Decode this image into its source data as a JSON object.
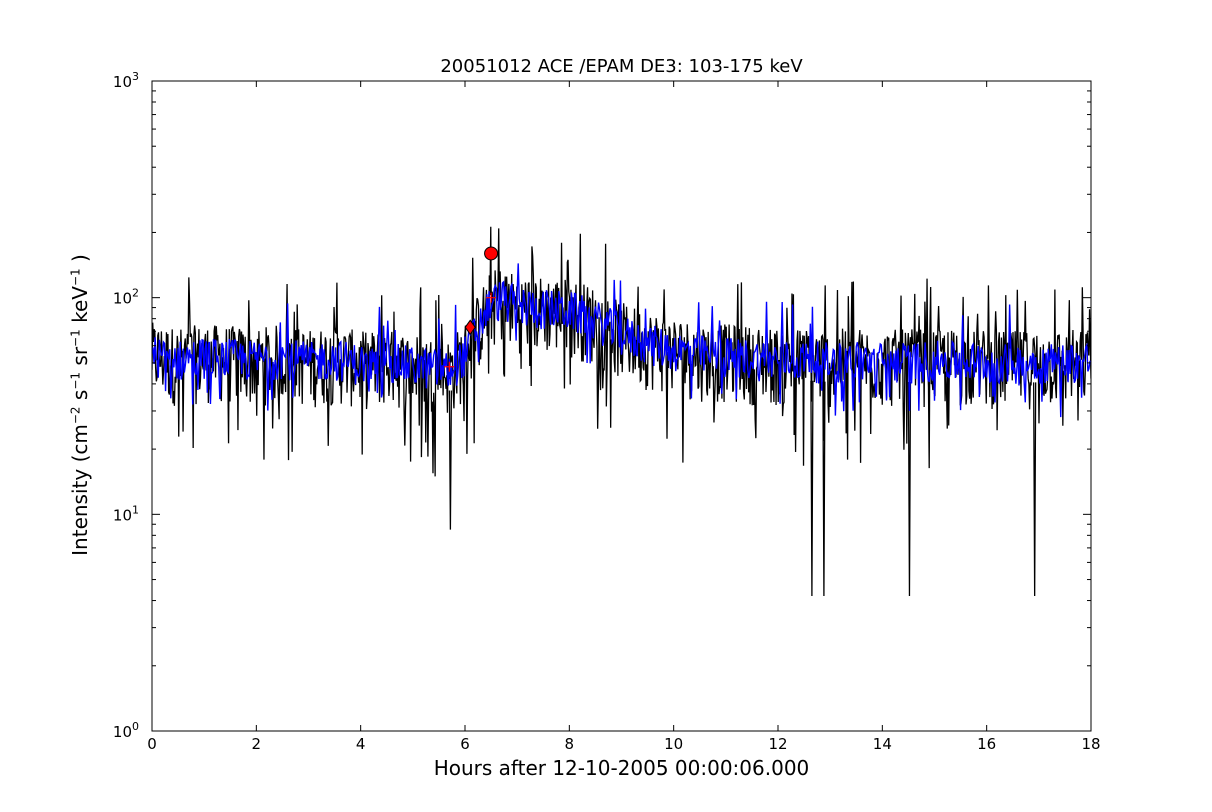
{
  "chart_data": {
    "type": "line",
    "title": "20051012 ACE /EPAM DE3: 103-175 keV",
    "xlabel": "Hours after 12-10-2005 00:00:06.000",
    "ylabel": {
      "prefix": "Intensity (cm",
      "e1": "−2",
      "s": " s",
      "e2": "−1",
      "sr": " sr",
      "e3": "−1",
      "kev": " keV",
      "e4": "−1",
      "suffix": " )"
    },
    "xlim": [
      0,
      18
    ],
    "ylim": [
      1,
      1000
    ],
    "yscale": "log",
    "grid": false,
    "x_ticks": [
      0,
      2,
      4,
      6,
      8,
      10,
      12,
      14,
      16,
      18
    ],
    "x_tick_labels": [
      "0",
      "2",
      "4",
      "6",
      "8",
      "10",
      "12",
      "14",
      "16",
      "18"
    ],
    "y_ticks": [
      1,
      10,
      100,
      1000
    ],
    "y_tick_labels": [
      {
        "base": "10",
        "exp": "0"
      },
      {
        "base": "10",
        "exp": "1"
      },
      {
        "base": "10",
        "exp": "2"
      },
      {
        "base": "10",
        "exp": "3"
      }
    ],
    "series": [
      {
        "color": "#000000",
        "x": [
          0,
          0.5,
          1,
          1.5,
          2,
          2.5,
          3,
          3.5,
          4,
          4.5,
          5,
          5.5,
          5.7,
          6,
          6.3,
          6.5,
          6.7,
          7,
          7.5,
          8,
          8.5,
          9,
          9.5,
          10,
          10.5,
          11,
          11.5,
          12,
          12.5,
          13,
          13.5,
          14,
          14.5,
          15,
          15.5,
          16,
          16.5,
          17,
          17.5,
          18
        ],
        "y": [
          55,
          52,
          54,
          53,
          52,
          54,
          51,
          53,
          50,
          51,
          49,
          47,
          46,
          55,
          78,
          95,
          100,
          92,
          90,
          88,
          80,
          68,
          62,
          58,
          55,
          54,
          53,
          52,
          52,
          51,
          52,
          51,
          51,
          52,
          51,
          51,
          50,
          51,
          51,
          52
        ],
        "spikes": [
          {
            "x": 5.72,
            "y": 8.5
          },
          {
            "x": 12.65,
            "y": 4.2
          },
          {
            "x": 12.88,
            "y": 4.2
          },
          {
            "x": 14.52,
            "y": 4.2
          },
          {
            "x": 16.92,
            "y": 4.2
          }
        ]
      },
      {
        "color": "#0000ff",
        "x": [
          0,
          0.5,
          1,
          1.5,
          2,
          2.5,
          3,
          3.5,
          4,
          4.5,
          5,
          5.5,
          5.7,
          6,
          6.3,
          6.5,
          6.7,
          7,
          7.5,
          8,
          8.5,
          9,
          9.5,
          10,
          10.5,
          11,
          11.5,
          12,
          12.5,
          13,
          13.5,
          14,
          14.5,
          15,
          15.5,
          16,
          16.5,
          17,
          17.5,
          18
        ],
        "y": [
          55,
          52,
          54,
          53,
          52,
          54,
          51,
          53,
          50,
          51,
          49,
          47,
          46,
          55,
          78,
          95,
          100,
          92,
          90,
          88,
          80,
          68,
          62,
          58,
          55,
          54,
          53,
          52,
          52,
          51,
          52,
          51,
          51,
          52,
          51,
          51,
          50,
          51,
          51,
          52
        ]
      }
    ],
    "markers": [
      {
        "shape": "circle",
        "x": 6.5,
        "y": 160,
        "color": "#ff0000"
      },
      {
        "shape": "diamond",
        "x": 6.1,
        "y": 73,
        "color": "#ff0000"
      },
      {
        "shape": "plus",
        "x": 5.7,
        "y": 48,
        "color": "#ff0000"
      },
      {
        "shape": "plus",
        "x": 6.5,
        "y": 100,
        "color": "#ff0000"
      }
    ]
  }
}
